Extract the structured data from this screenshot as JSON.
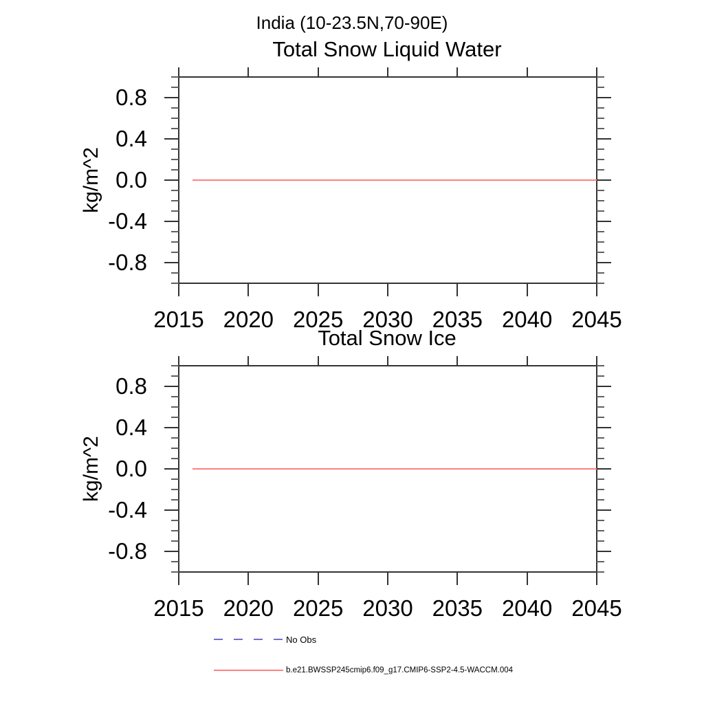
{
  "figure": {
    "suptitle": "India (10-23.5N,70-90E)",
    "background_color": "#FFFFFF",
    "frame_color": "#333333"
  },
  "chart_data": [
    {
      "type": "line",
      "title": "Total Snow Liquid Water",
      "xlabel": "",
      "ylabel": "kg/m^2",
      "xlim": [
        2015,
        2045
      ],
      "ylim": [
        -1.0,
        1.0
      ],
      "grid": false,
      "xticks": [
        2015,
        2020,
        2025,
        2030,
        2035,
        2040,
        2045
      ],
      "xtick_labels": [
        "2015",
        "2020",
        "2025",
        "2030",
        "2035",
        "2040",
        "2045"
      ],
      "yticks_major": [
        0.8,
        0.4,
        0.0,
        -0.4,
        -0.8
      ],
      "ytick_labels": [
        "0.8",
        "0.4",
        "0.0",
        "-0.4",
        "-0.8"
      ],
      "yticks_minor": [
        1.0,
        0.9,
        0.7,
        0.6,
        0.5,
        0.3,
        0.2,
        0.1,
        -0.1,
        -0.2,
        -0.3,
        -0.5,
        -0.6,
        -0.7,
        -0.9,
        -1.0
      ],
      "series": [
        {
          "name": "b.e21.BWSSP245cmip6.f09_g17.CMIP6-SSP2-4.5-WACCM.004",
          "color": "#FF8080",
          "style": "solid",
          "x": [
            2016,
            2045
          ],
          "y": [
            0.0,
            0.0
          ]
        }
      ]
    },
    {
      "type": "line",
      "title": "Total Snow Ice",
      "xlabel": "",
      "ylabel": "kg/m^2",
      "xlim": [
        2015,
        2045
      ],
      "ylim": [
        -1.0,
        1.0
      ],
      "grid": false,
      "xticks": [
        2015,
        2020,
        2025,
        2030,
        2035,
        2040,
        2045
      ],
      "xtick_labels": [
        "2015",
        "2020",
        "2025",
        "2030",
        "2035",
        "2040",
        "2045"
      ],
      "yticks_major": [
        0.8,
        0.4,
        0.0,
        -0.4,
        -0.8
      ],
      "ytick_labels": [
        "0.8",
        "0.4",
        "0.0",
        "-0.4",
        "-0.8"
      ],
      "yticks_minor": [
        1.0,
        0.9,
        0.7,
        0.6,
        0.5,
        0.3,
        0.2,
        0.1,
        -0.1,
        -0.2,
        -0.3,
        -0.5,
        -0.6,
        -0.7,
        -0.9,
        -1.0
      ],
      "series": [
        {
          "name": "b.e21.BWSSP245cmip6.f09_g17.CMIP6-SSP2-4.5-WACCM.004",
          "color": "#FF8080",
          "style": "solid",
          "x": [
            2016,
            2045
          ],
          "y": [
            0.0,
            0.0
          ]
        }
      ]
    }
  ],
  "legend": {
    "position": "below",
    "entries": [
      {
        "label": "No Obs",
        "color": "#7070CC",
        "line_style": "dashed"
      },
      {
        "label": "b.e21.BWSSP245cmip6.f09_g17.CMIP6-SSP2-4.5-WACCM.004",
        "color": "#FF8080",
        "line_style": "solid"
      }
    ]
  }
}
